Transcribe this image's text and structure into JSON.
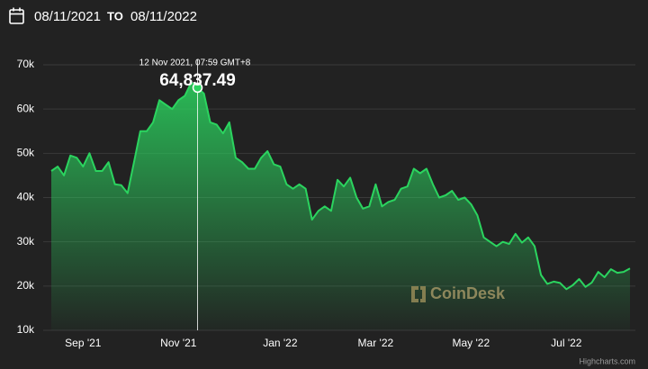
{
  "header": {
    "from": "08/11/2021",
    "separator": "TO",
    "to": "08/11/2022"
  },
  "watermark": "CoinDesk",
  "credit": "Highcharts.com",
  "chart_data": {
    "type": "area",
    "color": "#2bd45f",
    "grid": true,
    "ylim": [
      10000,
      70000
    ],
    "yticks": [
      {
        "value": 10000,
        "label": "10k"
      },
      {
        "value": 20000,
        "label": "20k"
      },
      {
        "value": 30000,
        "label": "30k"
      },
      {
        "value": 40000,
        "label": "40k"
      },
      {
        "value": 50000,
        "label": "50k"
      },
      {
        "value": 60000,
        "label": "60k"
      },
      {
        "value": 70000,
        "label": "70k"
      }
    ],
    "categories": [
      null,
      null,
      null,
      null,
      null,
      "Sep '21",
      null,
      null,
      null,
      null,
      null,
      null,
      null,
      null,
      null,
      null,
      null,
      null,
      null,
      null,
      "Nov '21",
      null,
      null,
      null,
      null,
      null,
      null,
      null,
      null,
      null,
      null,
      null,
      null,
      null,
      null,
      null,
      "Jan '22",
      null,
      null,
      null,
      null,
      null,
      null,
      null,
      null,
      null,
      null,
      null,
      null,
      null,
      null,
      "Mar '22",
      null,
      null,
      null,
      null,
      null,
      null,
      null,
      null,
      null,
      null,
      null,
      null,
      null,
      null,
      "May '22",
      null,
      null,
      null,
      null,
      null,
      null,
      null,
      null,
      null,
      null,
      null,
      null,
      null,
      null,
      "Jul '22",
      null,
      null,
      null,
      null,
      null,
      null,
      null,
      null,
      null,
      null
    ],
    "values": [
      46000,
      47000,
      45000,
      49500,
      49000,
      47000,
      50000,
      46000,
      46000,
      48000,
      43000,
      42800,
      41000,
      48000,
      55000,
      55000,
      57000,
      62000,
      61000,
      60000,
      62000,
      63000,
      66000,
      64837.49,
      63500,
      57000,
      56500,
      54500,
      57000,
      49000,
      48000,
      46500,
      46500,
      49000,
      50500,
      47500,
      47000,
      43000,
      42000,
      43000,
      42000,
      35000,
      37000,
      38000,
      37000,
      44000,
      42500,
      44500,
      40000,
      37500,
      38000,
      43000,
      38000,
      39000,
      39500,
      42000,
      42500,
      46500,
      45500,
      46500,
      43000,
      40000,
      40500,
      41500,
      39500,
      40000,
      38500,
      36000,
      31000,
      30000,
      29000,
      30000,
      29500,
      31800,
      29800,
      31000,
      29000,
      22500,
      20500,
      21000,
      20700,
      19300,
      20200,
      21600,
      19800,
      20800,
      23200,
      22000,
      23800,
      23000,
      23200,
      24000
    ],
    "value_labels": [
      null,
      null,
      null,
      null,
      null,
      null,
      null,
      null,
      null,
      null,
      null,
      null,
      null,
      null,
      null,
      null,
      null,
      null,
      null,
      null,
      null,
      null,
      null,
      "64,837.49",
      null,
      null,
      null,
      null,
      null,
      null,
      null,
      null,
      null,
      null,
      null,
      null,
      null,
      null,
      null,
      null,
      null,
      null,
      null,
      null,
      null,
      null,
      null,
      null,
      null,
      null,
      null,
      null,
      null,
      null,
      null,
      null,
      null,
      null,
      null,
      null,
      null,
      null,
      null,
      null,
      null,
      null,
      null,
      null,
      null,
      null,
      null,
      null,
      null,
      null,
      null,
      null,
      null,
      null,
      null,
      null,
      null,
      null,
      null,
      null,
      null,
      null,
      null,
      null,
      null,
      null,
      null,
      null
    ],
    "annotation": "12 Nov 2021, 07:59 GMT+8"
  }
}
